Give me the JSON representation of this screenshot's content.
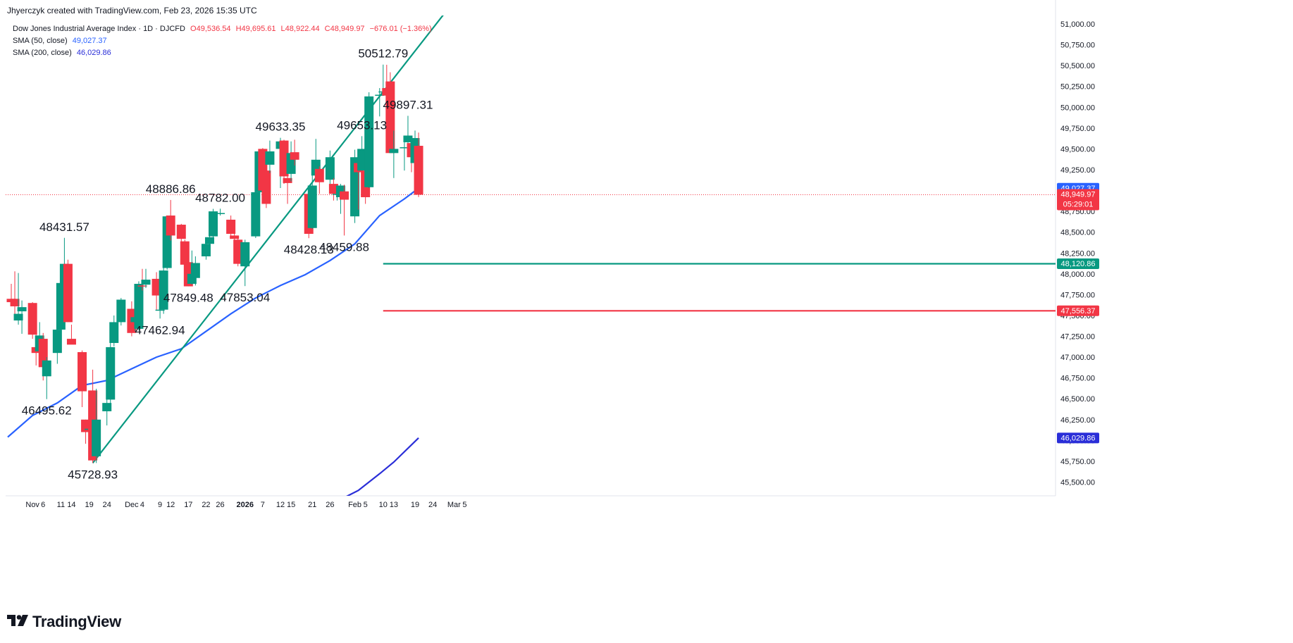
{
  "header": {
    "credit": "Jhyerczyk created with TradingView.com, Feb 23, 2026 15:35 UTC"
  },
  "legend": {
    "symbol": "Dow Jones Industrial Average Index · 1D · DJCFD",
    "open": "O49,536.54",
    "high": "H49,695.61",
    "low": "L48,922.44",
    "close": "C48,949.97",
    "change": "−676.01 (−1.36%)",
    "sma50_label": "SMA (50, close)",
    "sma50_value": "49,027.37",
    "sma200_label": "SMA (200, close)",
    "sma200_value": "46,029.86"
  },
  "brand": {
    "name": "TradingView",
    "icon": "tradingview-logo-icon"
  },
  "colors": {
    "up": "#089981",
    "down": "#f23645",
    "sma50": "#2962ff",
    "sma200": "#2a2ed8",
    "trendline": "#089981",
    "support": "#089981",
    "resistance": "#f23645",
    "last_price_line": "#f23645"
  },
  "chart_data": {
    "type": "candlestick",
    "x_axis": {
      "ticks": [
        "Nov",
        "6",
        "11",
        "14",
        "19",
        "24",
        "Dec",
        "4",
        "9",
        "12",
        "17",
        "22",
        "26",
        "2026",
        "7",
        "12",
        "15",
        "21",
        "26",
        "Feb",
        "5",
        "10",
        "13",
        "19",
        "24",
        "Mar",
        "5"
      ],
      "tick_dates": [
        "2025-11-03",
        "2025-11-06",
        "2025-11-11",
        "2025-11-14",
        "2025-11-19",
        "2025-11-24",
        "2025-12-01",
        "2025-12-04",
        "2025-12-09",
        "2025-12-12",
        "2025-12-17",
        "2025-12-22",
        "2025-12-26",
        "2026-01-02",
        "2026-01-07",
        "2026-01-12",
        "2026-01-15",
        "2026-01-21",
        "2026-01-26",
        "2026-02-02",
        "2026-02-05",
        "2026-02-10",
        "2026-02-13",
        "2026-02-19",
        "2026-02-24",
        "2026-03-02",
        "2026-03-05"
      ]
    },
    "y_axis": {
      "ticks": [
        "51,000.00",
        "50,750.00",
        "50,500.00",
        "50,250.00",
        "50,000.00",
        "49,750.00",
        "49,500.00",
        "49,250.00",
        "48,750.00",
        "48,500.00",
        "48,250.00",
        "48,000.00",
        "47,750.00",
        "47,500.00",
        "47,250.00",
        "47,000.00",
        "46,750.00",
        "46,500.00",
        "46,250.00",
        "46,000.00",
        "45,750.00",
        "45,500.00"
      ],
      "tick_values": [
        51000,
        50750,
        50500,
        50250,
        50000,
        49750,
        49500,
        49250,
        48750,
        48500,
        48250,
        48000,
        47750,
        47500,
        47250,
        47000,
        46750,
        46500,
        46250,
        46000,
        45750,
        45500
      ],
      "range": [
        45280,
        51100
      ]
    },
    "candles": [
      {
        "date": "2025-10-28",
        "o": 47700,
        "h": 47880,
        "l": 47640,
        "c": 47660
      },
      {
        "date": "2025-10-29",
        "o": 47700,
        "h": 48030,
        "l": 47480,
        "c": 47610
      },
      {
        "date": "2025-10-30",
        "o": 47440,
        "h": 48010,
        "l": 47390,
        "c": 47520
      },
      {
        "date": "2025-10-31",
        "o": 47550,
        "h": 47680,
        "l": 47280,
        "c": 47600
      },
      {
        "date": "2025-11-03",
        "o": 47650,
        "h": 47660,
        "l": 47220,
        "c": 47270
      },
      {
        "date": "2025-11-04",
        "o": 47120,
        "h": 47270,
        "l": 46900,
        "c": 47050
      },
      {
        "date": "2025-11-05",
        "o": 47070,
        "h": 47420,
        "l": 46880,
        "c": 47260
      },
      {
        "date": "2025-11-06",
        "o": 47220,
        "h": 47290,
        "l": 46720,
        "c": 46880
      },
      {
        "date": "2025-11-07",
        "o": 46770,
        "h": 47000,
        "l": 46496,
        "c": 46960
      },
      {
        "date": "2025-11-10",
        "o": 47050,
        "h": 47380,
        "l": 46920,
        "c": 47330
      },
      {
        "date": "2025-11-11",
        "o": 47330,
        "h": 47900,
        "l": 47290,
        "c": 47890
      },
      {
        "date": "2025-11-12",
        "o": 47880,
        "h": 48432,
        "l": 47880,
        "c": 48120
      },
      {
        "date": "2025-11-13",
        "o": 48120,
        "h": 48170,
        "l": 47420,
        "c": 47420
      },
      {
        "date": "2025-11-14",
        "o": 47220,
        "h": 47390,
        "l": 47160,
        "c": 47150
      },
      {
        "date": "2025-11-17",
        "o": 47060,
        "h": 47080,
        "l": 46400,
        "c": 46590
      },
      {
        "date": "2025-11-18",
        "o": 46250,
        "h": 46250,
        "l": 45960,
        "c": 46100
      },
      {
        "date": "2025-11-19",
        "o": 46130,
        "h": 46330,
        "l": 45980,
        "c": 46140
      },
      {
        "date": "2025-11-20",
        "o": 46600,
        "h": 46850,
        "l": 45729,
        "c": 45760
      },
      {
        "date": "2025-11-21",
        "o": 45810,
        "h": 46620,
        "l": 45729,
        "c": 46250
      },
      {
        "date": "2025-11-24",
        "o": 46350,
        "h": 46620,
        "l": 46180,
        "c": 46450
      },
      {
        "date": "2025-11-25",
        "o": 46490,
        "h": 47170,
        "l": 46360,
        "c": 47120
      },
      {
        "date": "2025-11-26",
        "o": 47170,
        "h": 47500,
        "l": 47130,
        "c": 47420
      },
      {
        "date": "2025-11-28",
        "o": 47420,
        "h": 47710,
        "l": 47380,
        "c": 47690
      },
      {
        "date": "2025-12-01",
        "o": 47580,
        "h": 47670,
        "l": 47250,
        "c": 47290
      },
      {
        "date": "2025-12-02",
        "o": 47420,
        "h": 47590,
        "l": 47310,
        "c": 47480
      },
      {
        "date": "2025-12-03",
        "o": 47340,
        "h": 47910,
        "l": 47320,
        "c": 47880
      },
      {
        "date": "2025-12-04",
        "o": 47860,
        "h": 48060,
        "l": 47800,
        "c": 47850
      },
      {
        "date": "2025-12-05",
        "o": 47870,
        "h": 48060,
        "l": 47830,
        "c": 47930
      },
      {
        "date": "2025-12-08",
        "o": 47940,
        "h": 48020,
        "l": 47570,
        "c": 47740
      },
      {
        "date": "2025-12-09",
        "o": 47560,
        "h": 47710,
        "l": 47463,
        "c": 47570
      },
      {
        "date": "2025-12-10",
        "o": 47570,
        "h": 48140,
        "l": 47520,
        "c": 48040
      },
      {
        "date": "2025-12-11",
        "o": 48070,
        "h": 48700,
        "l": 48050,
        "c": 48690
      },
      {
        "date": "2025-12-12",
        "o": 48700,
        "h": 48887,
        "l": 48400,
        "c": 48460
      },
      {
        "date": "2025-12-15",
        "o": 48590,
        "h": 48600,
        "l": 48320,
        "c": 48420
      },
      {
        "date": "2025-12-16",
        "o": 48390,
        "h": 48410,
        "l": 47960,
        "c": 48110
      },
      {
        "date": "2025-12-17",
        "o": 48140,
        "h": 48170,
        "l": 47850,
        "c": 47850
      },
      {
        "date": "2025-12-18",
        "o": 47880,
        "h": 48280,
        "l": 47870,
        "c": 48000
      },
      {
        "date": "2025-12-19",
        "o": 47950,
        "h": 48210,
        "l": 47860,
        "c": 48130
      },
      {
        "date": "2025-12-22",
        "o": 48210,
        "h": 48430,
        "l": 48170,
        "c": 48360
      },
      {
        "date": "2025-12-23",
        "o": 48360,
        "h": 48510,
        "l": 48330,
        "c": 48440
      },
      {
        "date": "2025-12-24",
        "o": 48450,
        "h": 48780,
        "l": 48410,
        "c": 48750
      },
      {
        "date": "2025-12-26",
        "o": 48730,
        "h": 48782,
        "l": 48700,
        "c": 48730
      },
      {
        "date": "2025-12-29",
        "o": 48650,
        "h": 48700,
        "l": 48420,
        "c": 48480
      },
      {
        "date": "2025-12-30",
        "o": 48460,
        "h": 48490,
        "l": 48370,
        "c": 48420
      },
      {
        "date": "2025-12-31",
        "o": 48410,
        "h": 48450,
        "l": 48090,
        "c": 48120
      },
      {
        "date": "2026-01-02",
        "o": 48090,
        "h": 48410,
        "l": 47853,
        "c": 48380
      },
      {
        "date": "2026-01-05",
        "o": 48450,
        "h": 49250,
        "l": 48430,
        "c": 48980
      },
      {
        "date": "2026-01-06",
        "o": 48980,
        "h": 49480,
        "l": 48890,
        "c": 49470
      },
      {
        "date": "2026-01-07",
        "o": 49500,
        "h": 49510,
        "l": 48980,
        "c": 49000
      },
      {
        "date": "2026-01-08",
        "o": 49240,
        "h": 49300,
        "l": 48790,
        "c": 48840
      },
      {
        "date": "2026-01-09",
        "o": 49310,
        "h": 49600,
        "l": 49210,
        "c": 49470
      },
      {
        "date": "2026-01-12",
        "o": 49500,
        "h": 49633,
        "l": 49030,
        "c": 49590
      },
      {
        "date": "2026-01-13",
        "o": 49600,
        "h": 49610,
        "l": 49080,
        "c": 49170
      },
      {
        "date": "2026-01-14",
        "o": 49150,
        "h": 49200,
        "l": 48840,
        "c": 49090
      },
      {
        "date": "2026-01-15",
        "o": 49200,
        "h": 49590,
        "l": 49110,
        "c": 49450
      },
      {
        "date": "2026-01-16",
        "o": 49460,
        "h": 49610,
        "l": 49300,
        "c": 49370
      },
      {
        "date": "2026-01-20",
        "o": 48960,
        "h": 49000,
        "l": 48428,
        "c": 48480
      },
      {
        "date": "2026-01-21",
        "o": 48550,
        "h": 49290,
        "l": 48540,
        "c": 49060
      },
      {
        "date": "2026-01-22",
        "o": 49180,
        "h": 49620,
        "l": 49140,
        "c": 49370
      },
      {
        "date": "2026-01-23",
        "o": 49260,
        "h": 49290,
        "l": 48960,
        "c": 49100
      },
      {
        "date": "2026-01-26",
        "o": 49130,
        "h": 49480,
        "l": 49080,
        "c": 49400
      },
      {
        "date": "2026-01-27",
        "o": 49080,
        "h": 49150,
        "l": 48880,
        "c": 48960
      },
      {
        "date": "2026-01-28",
        "o": 48960,
        "h": 49060,
        "l": 48880,
        "c": 48960
      },
      {
        "date": "2026-01-29",
        "o": 48920,
        "h": 49080,
        "l": 48720,
        "c": 49060
      },
      {
        "date": "2026-01-30",
        "o": 48990,
        "h": 49070,
        "l": 48460,
        "c": 48890
      },
      {
        "date": "2026-02-02",
        "o": 48690,
        "h": 49490,
        "l": 48610,
        "c": 49400
      },
      {
        "date": "2026-02-03",
        "o": 49330,
        "h": 49480,
        "l": 48770,
        "c": 49220
      },
      {
        "date": "2026-02-04",
        "o": 49240,
        "h": 49653,
        "l": 49190,
        "c": 49500
      },
      {
        "date": "2026-02-05",
        "o": 49240,
        "h": 49280,
        "l": 48840,
        "c": 48920
      },
      {
        "date": "2026-02-06",
        "o": 49040,
        "h": 50180,
        "l": 49030,
        "c": 50130
      },
      {
        "date": "2026-02-09",
        "o": 50140,
        "h": 50230,
        "l": 49890,
        "c": 50150
      },
      {
        "date": "2026-02-10",
        "o": 50190,
        "h": 50512,
        "l": 50170,
        "c": 50190
      },
      {
        "date": "2026-02-11",
        "o": 50230,
        "h": 50510,
        "l": 49950,
        "c": 50140
      },
      {
        "date": "2026-02-12",
        "o": 50310,
        "h": 50420,
        "l": 49450,
        "c": 49450
      },
      {
        "date": "2026-02-13",
        "o": 49450,
        "h": 49720,
        "l": 49150,
        "c": 49500
      },
      {
        "date": "2026-02-16",
        "o": 49520,
        "h": 49620,
        "l": 49240,
        "c": 49520
      },
      {
        "date": "2026-02-17",
        "o": 49580,
        "h": 49897,
        "l": 49420,
        "c": 49660
      },
      {
        "date": "2026-02-18",
        "o": 49570,
        "h": 49620,
        "l": 49220,
        "c": 49400
      },
      {
        "date": "2026-02-19",
        "o": 49330,
        "h": 49720,
        "l": 49190,
        "c": 49630
      },
      {
        "date": "2026-02-20",
        "o": 49537,
        "h": 49696,
        "l": 48922,
        "c": 48950
      }
    ],
    "annotations": [
      {
        "text": "48431.57",
        "date": "2025-11-12",
        "value": 48431.57
      },
      {
        "text": "46495.62",
        "date": "2025-11-07",
        "value": 46495.62
      },
      {
        "text": "45728.93",
        "date": "2025-11-20",
        "value": 45728.93
      },
      {
        "text": "48886.86",
        "date": "2025-12-12",
        "value": 48886.86
      },
      {
        "text": "47462.94",
        "date": "2025-12-09",
        "value": 47462.94
      },
      {
        "text": "47849.48",
        "date": "2025-12-17",
        "value": 47849.48
      },
      {
        "text": "48782.00",
        "date": "2025-12-26",
        "value": 48782.0
      },
      {
        "text": "47853.04",
        "date": "2026-01-02",
        "value": 47853.04
      },
      {
        "text": "49633.35",
        "date": "2026-01-12",
        "value": 49633.35
      },
      {
        "text": "48428.13",
        "date": "2026-01-20",
        "value": 48428.13
      },
      {
        "text": "49653.13",
        "date": "2026-02-04",
        "value": 49653.13
      },
      {
        "text": "48459.88",
        "date": "2026-01-30",
        "value": 48459.88
      },
      {
        "text": "50512.79",
        "date": "2026-02-10",
        "value": 50512.79
      },
      {
        "text": "49897.31",
        "date": "2026-02-17",
        "value": 49897.31
      }
    ],
    "sma50": [
      {
        "date": "2025-10-27",
        "value": 46040
      },
      {
        "date": "2025-11-03",
        "value": 46300
      },
      {
        "date": "2025-11-10",
        "value": 46450
      },
      {
        "date": "2025-11-17",
        "value": 46660
      },
      {
        "date": "2025-11-24",
        "value": 46720
      },
      {
        "date": "2025-12-01",
        "value": 46860
      },
      {
        "date": "2025-12-08",
        "value": 47000
      },
      {
        "date": "2025-12-15",
        "value": 47100
      },
      {
        "date": "2025-12-22",
        "value": 47310
      },
      {
        "date": "2025-12-29",
        "value": 47520
      },
      {
        "date": "2026-01-05",
        "value": 47710
      },
      {
        "date": "2026-01-12",
        "value": 47860
      },
      {
        "date": "2026-01-19",
        "value": 47990
      },
      {
        "date": "2026-01-26",
        "value": 48160
      },
      {
        "date": "2026-02-02",
        "value": 48360
      },
      {
        "date": "2026-02-09",
        "value": 48700
      },
      {
        "date": "2026-02-16",
        "value": 48900
      },
      {
        "date": "2026-02-20",
        "value": 49027.37
      }
    ],
    "sma200": [
      {
        "date": "2026-01-28",
        "value": 45270
      },
      {
        "date": "2026-02-03",
        "value": 45400
      },
      {
        "date": "2026-02-09",
        "value": 45600
      },
      {
        "date": "2026-02-13",
        "value": 45740
      },
      {
        "date": "2026-02-20",
        "value": 46029.86
      }
    ],
    "trendline": {
      "from": {
        "date": "2025-11-20",
        "value": 45728.93
      },
      "to": {
        "date": "2026-02-27",
        "value": 51110
      }
    },
    "horizontal_lines": [
      {
        "value": 48120.86,
        "label": "48,120.86",
        "from_date": "2026-02-10",
        "to_date": "2026-03-09",
        "kind": "support"
      },
      {
        "value": 47556.37,
        "label": "47,556.37",
        "from_date": "2026-02-10",
        "to_date": "2026-03-09",
        "kind": "resistance"
      }
    ],
    "price_badges": [
      {
        "value": 49027.37,
        "label": "49,027.37",
        "kind": "sma50"
      },
      {
        "value": 48949.97,
        "label": "48,949.97",
        "countdown": "05:29:01",
        "kind": "last"
      },
      {
        "value": 48120.86,
        "label": "48,120.86",
        "kind": "support"
      },
      {
        "value": 47556.37,
        "label": "47,556.37",
        "kind": "resistance"
      },
      {
        "value": 46029.86,
        "label": "46,029.86",
        "kind": "sma200"
      }
    ],
    "last_price": 48949.97,
    "grid": true
  }
}
